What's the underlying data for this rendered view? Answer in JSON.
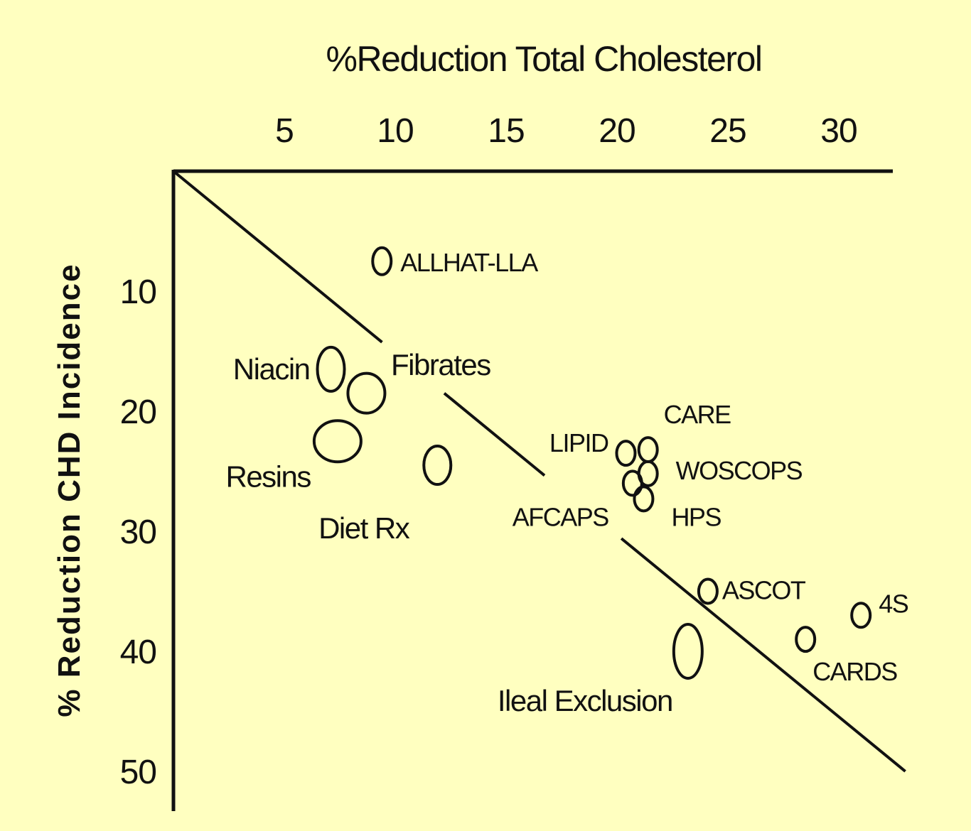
{
  "chart_data": {
    "type": "scatter",
    "title": "%Reduction Total Cholesterol",
    "xlabel": "",
    "ylabel": "% Reduction CHD Incidence",
    "x_ticks": [
      "5",
      "10",
      "15",
      "20",
      "25",
      "30"
    ],
    "y_ticks": [
      "10",
      "20",
      "30",
      "40",
      "50"
    ],
    "xlim": [
      0,
      33
    ],
    "ylim": [
      0,
      53
    ],
    "x_axis_position": "top",
    "y_axis_inverted": true,
    "grid": false,
    "regression_line": {
      "x": [
        0,
        33
      ],
      "y": [
        0,
        50
      ]
    },
    "points": [
      {
        "label": "ALLHAT-LLA",
        "x": 9.4,
        "y": 7.5
      },
      {
        "label": "Niacin",
        "x": 7.1,
        "y": 16.5
      },
      {
        "label": "",
        "x": 8.7,
        "y": 18.5
      },
      {
        "label": "Resins",
        "x": 7.4,
        "y": 22.5
      },
      {
        "label": "Diet Rx",
        "x": 11.9,
        "y": 24.5
      },
      {
        "label": "LIPID",
        "x": 20.4,
        "y": 23.5
      },
      {
        "label": "CARE",
        "x": 21.4,
        "y": 23.2
      },
      {
        "label": "WOSCOPS",
        "x": 21.4,
        "y": 25.2
      },
      {
        "label": "AFCAPS",
        "x": 20.7,
        "y": 26.0
      },
      {
        "label": "HPS",
        "x": 21.2,
        "y": 27.3
      },
      {
        "label": "ASCOT",
        "x": 24.1,
        "y": 35.0
      },
      {
        "label": "Ileal Exclusion",
        "x": 23.2,
        "y": 40.0
      },
      {
        "label": "CARDS",
        "x": 28.5,
        "y": 39.0
      },
      {
        "label": "4S",
        "x": 31.0,
        "y": 37.0
      }
    ],
    "annotations": [
      "Fibrates"
    ]
  }
}
